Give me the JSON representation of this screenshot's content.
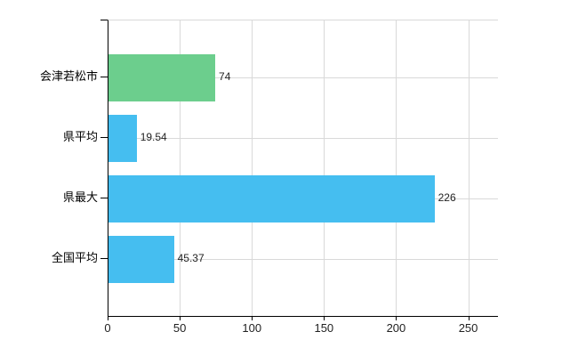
{
  "chart_data": {
    "type": "bar",
    "orientation": "horizontal",
    "title": "",
    "xlabel": "",
    "ylabel": "",
    "categories": [
      "会津若松市",
      "県平均",
      "県最大",
      "全国平均"
    ],
    "values": [
      74,
      19.54,
      226,
      45.37
    ],
    "value_labels": [
      "74",
      "19.54",
      "226",
      "45.37"
    ],
    "bar_colors": [
      "#6cce8d",
      "#45bef0",
      "#45bef0",
      "#45bef0"
    ],
    "x_ticks": [
      0,
      50,
      100,
      150,
      200,
      250
    ],
    "x_tick_labels": [
      "0",
      "50",
      "100",
      "150",
      "200",
      "250"
    ],
    "xlim": [
      0,
      270
    ],
    "grid": true,
    "legend": false
  },
  "colors": {
    "bar_green": "#6cce8d",
    "bar_blue": "#45bef0",
    "grid": "#d9d9d9",
    "axis": "#000000",
    "text": "#222222",
    "background": "#ffffff"
  }
}
